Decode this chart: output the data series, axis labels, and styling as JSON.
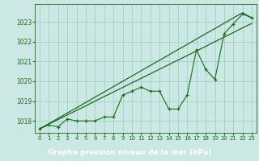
{
  "x": [
    0,
    1,
    2,
    3,
    4,
    5,
    6,
    7,
    8,
    9,
    10,
    11,
    12,
    13,
    14,
    15,
    16,
    17,
    18,
    19,
    20,
    21,
    22,
    23
  ],
  "y_data": [
    1017.6,
    1017.8,
    1017.7,
    1018.1,
    1018.0,
    1018.0,
    1018.0,
    1018.2,
    1018.2,
    1019.3,
    1019.5,
    1019.7,
    1019.5,
    1019.5,
    1018.6,
    1018.6,
    1019.3,
    1021.6,
    1020.6,
    1020.1,
    1022.4,
    1022.9,
    1023.4,
    1023.2
  ],
  "y_trend1": [
    1017.6,
    1017.84,
    1018.07,
    1018.3,
    1018.53,
    1018.76,
    1019.0,
    1019.23,
    1019.46,
    1019.69,
    1019.92,
    1020.15,
    1020.38,
    1020.61,
    1020.84,
    1021.07,
    1021.3,
    1021.53,
    1021.76,
    1022.0,
    1022.23,
    1022.46,
    1022.7,
    1022.92
  ],
  "y_trend2": [
    1017.6,
    1017.86,
    1018.13,
    1018.4,
    1018.66,
    1018.93,
    1019.2,
    1019.46,
    1019.73,
    1020.0,
    1020.26,
    1020.53,
    1020.8,
    1021.06,
    1021.33,
    1021.6,
    1021.86,
    1022.13,
    1022.4,
    1022.66,
    1022.93,
    1023.2,
    1023.46,
    1023.2
  ],
  "ylim": [
    1017.4,
    1023.9
  ],
  "yticks": [
    1018,
    1019,
    1020,
    1021,
    1022,
    1023
  ],
  "xlim": [
    -0.5,
    23.5
  ],
  "xticks": [
    0,
    1,
    2,
    3,
    4,
    5,
    6,
    7,
    8,
    9,
    10,
    11,
    12,
    13,
    14,
    15,
    16,
    17,
    18,
    19,
    20,
    21,
    22,
    23
  ],
  "xlabel": "Graphe pression niveau de la mer (hPa)",
  "line_color": "#1a6b1a",
  "bg_color": "#cce8e4",
  "grid_color": "#99ccc6",
  "title_bg": "#2d7a2d",
  "title_fg": "#ffffff",
  "ylabel_fontsize": 5.5,
  "xlabel_fontsize": 6.5,
  "tick_fontsize": 5.0
}
